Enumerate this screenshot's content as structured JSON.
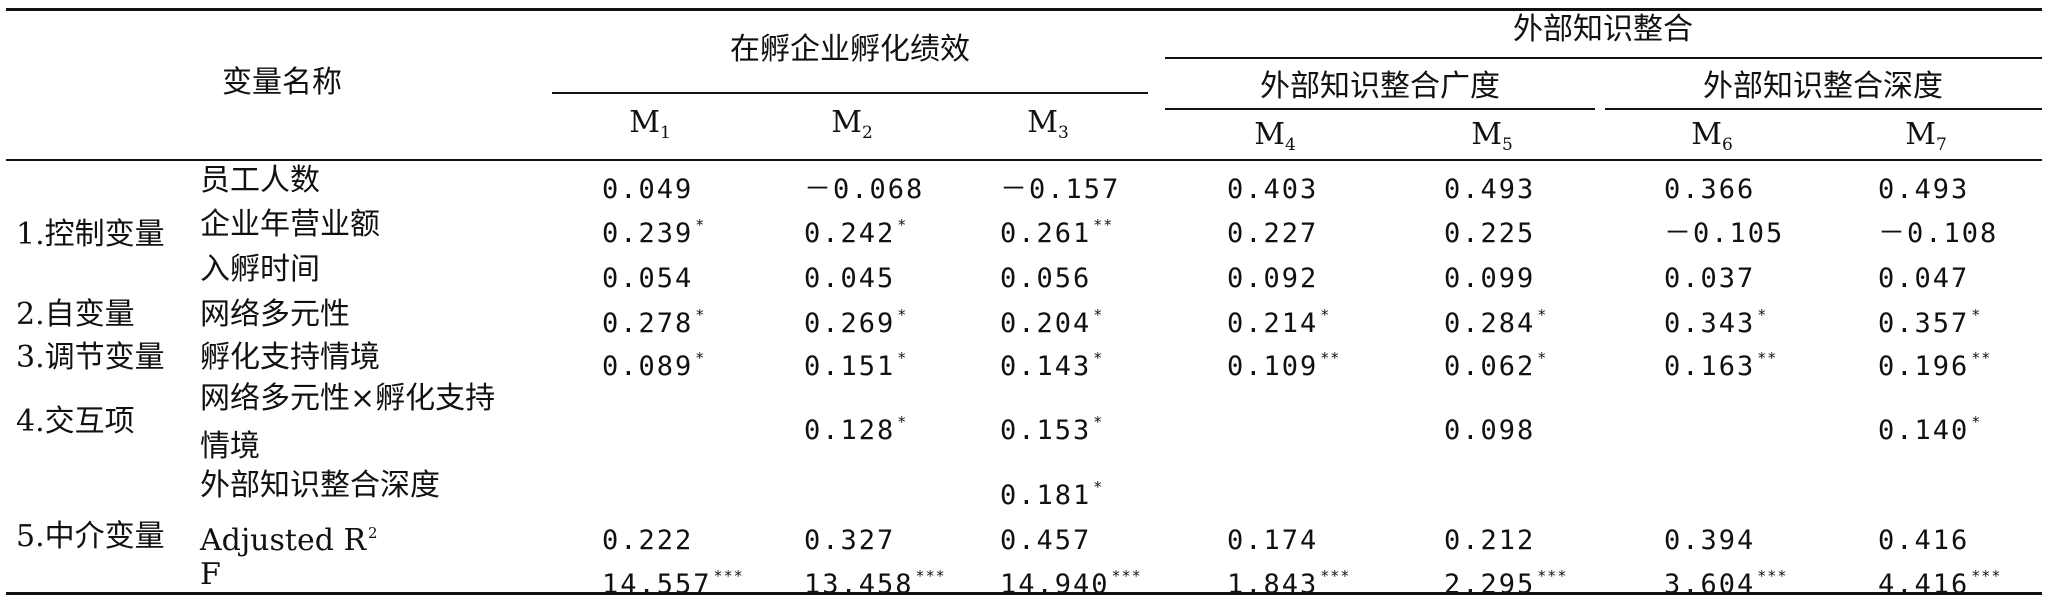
{
  "header": {
    "var_name": "变量名称",
    "perf_group": "在孵企业孵化绩效",
    "knowledge_group": "外部知识整合",
    "breadth": "外部知识整合广度",
    "depth": "外部知识整合深度",
    "models": [
      {
        "base": "M",
        "sub": "1"
      },
      {
        "base": "M",
        "sub": "2"
      },
      {
        "base": "M",
        "sub": "3"
      },
      {
        "base": "M",
        "sub": "4"
      },
      {
        "base": "M",
        "sub": "5"
      },
      {
        "base": "M",
        "sub": "6"
      },
      {
        "base": "M",
        "sub": "7"
      }
    ]
  },
  "categories": [
    "1.控制变量",
    "2.自变量",
    "3.调节变量",
    "4.交互项",
    "5.中介变量"
  ],
  "variables": {
    "employees": "员工人数",
    "revenue": "企业年营业额",
    "incubation_time": "入孵时间",
    "diversity": "网络多元性",
    "support": "孵化支持情境",
    "interaction_line1": "网络多元性×孵化支持",
    "interaction_line2": "情境",
    "ext_depth": "外部知识整合深度",
    "adj_r2": "Adjusted R",
    "adj_r2_sup": "2",
    "f": "F"
  },
  "rows": {
    "employees": [
      {
        "v": "0.049",
        "s": ""
      },
      {
        "v": "－0.068",
        "s": ""
      },
      {
        "v": "－0.157",
        "s": ""
      },
      {
        "v": "0.403",
        "s": ""
      },
      {
        "v": "0.493",
        "s": ""
      },
      {
        "v": "0.366",
        "s": ""
      },
      {
        "v": "0.493",
        "s": ""
      }
    ],
    "revenue": [
      {
        "v": "0.239",
        "s": "*"
      },
      {
        "v": "0.242",
        "s": "*"
      },
      {
        "v": "0.261",
        "s": "**"
      },
      {
        "v": "0.227",
        "s": ""
      },
      {
        "v": "0.225",
        "s": ""
      },
      {
        "v": "－0.105",
        "s": ""
      },
      {
        "v": "－0.108",
        "s": ""
      }
    ],
    "incubation_time": [
      {
        "v": "0.054",
        "s": ""
      },
      {
        "v": "0.045",
        "s": ""
      },
      {
        "v": "0.056",
        "s": ""
      },
      {
        "v": "0.092",
        "s": ""
      },
      {
        "v": "0.099",
        "s": ""
      },
      {
        "v": "0.037",
        "s": ""
      },
      {
        "v": "0.047",
        "s": ""
      }
    ],
    "diversity": [
      {
        "v": "0.278",
        "s": "*"
      },
      {
        "v": "0.269",
        "s": "*"
      },
      {
        "v": "0.204",
        "s": "*"
      },
      {
        "v": "0.214",
        "s": "*"
      },
      {
        "v": "0.284",
        "s": "*"
      },
      {
        "v": "0.343",
        "s": "*"
      },
      {
        "v": "0.357",
        "s": "*"
      }
    ],
    "support": [
      {
        "v": "0.089",
        "s": "*"
      },
      {
        "v": "0.151",
        "s": "*"
      },
      {
        "v": "0.143",
        "s": "*"
      },
      {
        "v": "0.109",
        "s": "**"
      },
      {
        "v": "0.062",
        "s": "*"
      },
      {
        "v": "0.163",
        "s": "**"
      },
      {
        "v": "0.196",
        "s": "**"
      }
    ],
    "interaction": [
      {
        "v": "",
        "s": ""
      },
      {
        "v": "0.128",
        "s": "*"
      },
      {
        "v": "0.153",
        "s": "*"
      },
      {
        "v": "",
        "s": ""
      },
      {
        "v": "0.098",
        "s": ""
      },
      {
        "v": "",
        "s": ""
      },
      {
        "v": "0.140",
        "s": "*"
      }
    ],
    "ext_depth": [
      {
        "v": "",
        "s": ""
      },
      {
        "v": "",
        "s": ""
      },
      {
        "v": "0.181",
        "s": "*"
      },
      {
        "v": "",
        "s": ""
      },
      {
        "v": "",
        "s": ""
      },
      {
        "v": "",
        "s": ""
      },
      {
        "v": "",
        "s": ""
      }
    ],
    "adj_r2": [
      {
        "v": "0.222",
        "s": ""
      },
      {
        "v": "0.327",
        "s": ""
      },
      {
        "v": "0.457",
        "s": ""
      },
      {
        "v": "0.174",
        "s": ""
      },
      {
        "v": "0.212",
        "s": ""
      },
      {
        "v": "0.394",
        "s": ""
      },
      {
        "v": "0.416",
        "s": ""
      }
    ],
    "f": [
      {
        "v": "14.557",
        "s": "***"
      },
      {
        "v": "13.458",
        "s": "***"
      },
      {
        "v": "14.940",
        "s": "***"
      },
      {
        "v": "1.843",
        "s": "***"
      },
      {
        "v": "2.295",
        "s": "***"
      },
      {
        "v": "3.604",
        "s": "***"
      },
      {
        "v": "4.416",
        "s": "***"
      }
    ]
  }
}
